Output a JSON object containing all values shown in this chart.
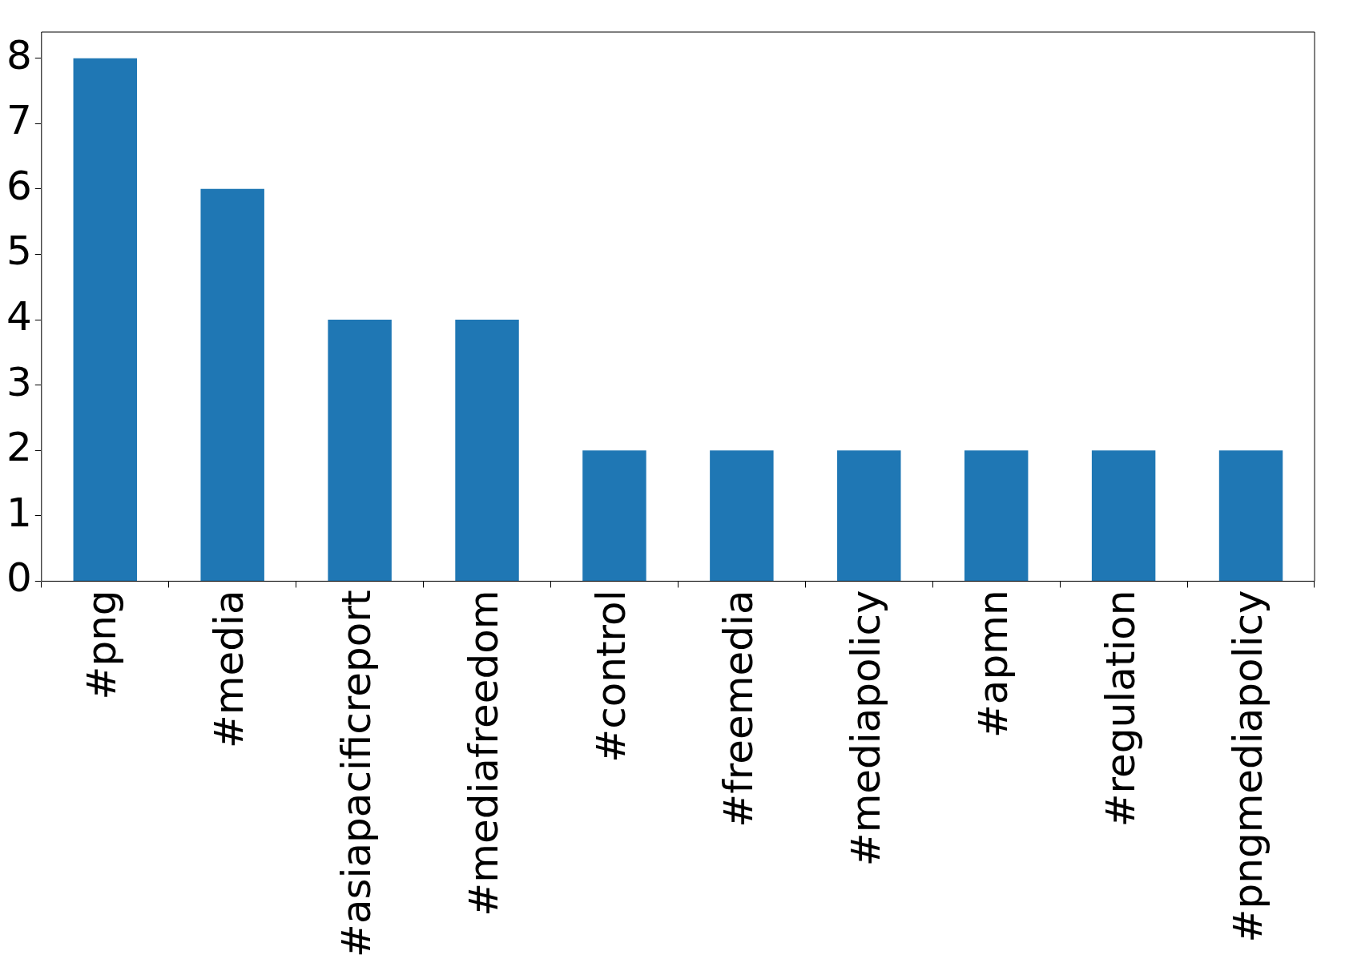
{
  "chart_data": {
    "type": "bar",
    "categories": [
      "#png",
      "#media",
      "#asiapacificreport",
      "#mediafreedom",
      "#control",
      "#freemedia",
      "#mediapolicy",
      "#apmn",
      "#regulation",
      "#pngmediapolicy"
    ],
    "values": [
      8,
      6,
      4,
      4,
      2,
      2,
      2,
      2,
      2,
      2
    ],
    "color": "#1f77b4",
    "ylim": [
      0,
      8.4
    ],
    "yticks": [
      0,
      1,
      2,
      3,
      4,
      5,
      6,
      7,
      8
    ],
    "grid": false,
    "legend": false
  }
}
